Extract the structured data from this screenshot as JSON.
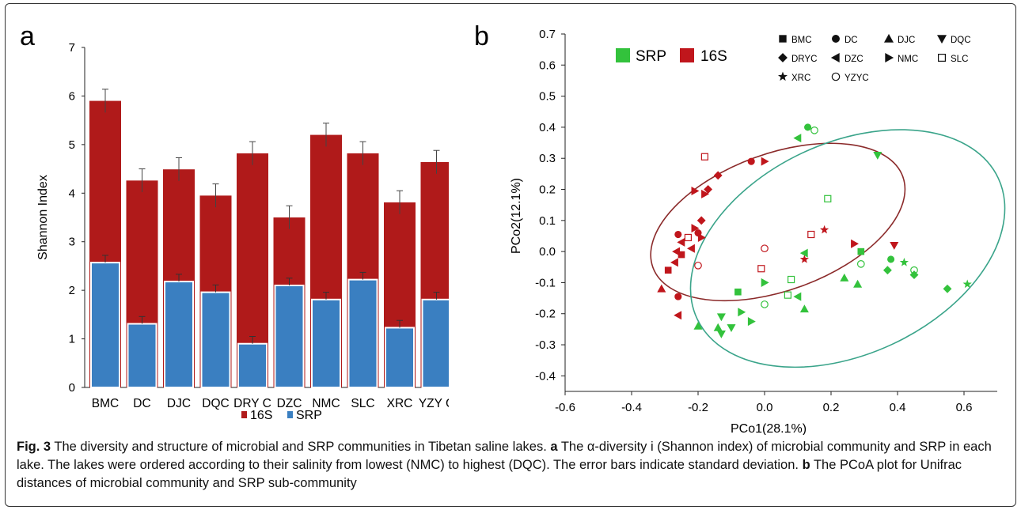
{
  "caption": {
    "lead": "Fig. 3",
    "p1": " The diversity and structure of microbial and SRP communities in Tibetan saline lakes. ",
    "a_letter": "a",
    "p2": " The α-diversity i (Shannon index) of microbial community and SRP in each lake. The lakes were ordered according to their salinity from lowest (NMC) to highest (DQC). The error bars indicate standard deviation. ",
    "b_letter": "b",
    "p3": " The PCoA plot for Unifrac distances of microbial community and SRP sub-community"
  },
  "chart_data": [
    {
      "type": "bar",
      "panel_label": "a",
      "categories": [
        "BMC",
        "DC",
        "DJC",
        "DQC",
        "DRY C",
        "DZC",
        "NMC",
        "SLC",
        "XRC",
        "YZY C"
      ],
      "series": [
        {
          "name": "16S",
          "color": "#b01a1a",
          "values": [
            5.9,
            4.26,
            4.49,
            3.95,
            4.82,
            3.5,
            5.2,
            4.82,
            3.81,
            4.64
          ],
          "errors": [
            0.24,
            0.24,
            0.24,
            0.24,
            0.24,
            0.24,
            0.24,
            0.24,
            0.24,
            0.24
          ]
        },
        {
          "name": "SRP",
          "color": "#3a7fc1",
          "values": [
            2.57,
            1.31,
            2.18,
            1.96,
            0.9,
            2.1,
            1.81,
            2.22,
            1.23,
            1.81
          ],
          "errors": [
            0.15,
            0.15,
            0.15,
            0.15,
            0.15,
            0.15,
            0.15,
            0.15,
            0.15,
            0.15
          ]
        }
      ],
      "ylabel": "Shannon Index",
      "xlabel": "",
      "ylim": [
        0,
        7
      ],
      "yticks": [
        "0",
        "1",
        "2",
        "3",
        "4",
        "5",
        "6",
        "7"
      ],
      "legend": {
        "placement": "bottom",
        "entries": [
          "16S",
          "SRP"
        ]
      }
    },
    {
      "type": "scatter",
      "panel_label": "b",
      "xlabel": "PCo1(28.1%)",
      "ylabel": "PCo2(12.1%)",
      "xlim": [
        -0.6,
        0.7
      ],
      "ylim": [
        -0.45,
        0.7
      ],
      "xticks": [
        "-0.6",
        "-0.4",
        "-0.2",
        "0.0",
        "0.2",
        "0.4",
        "0.6"
      ],
      "yticks": [
        "0.7",
        "0.6",
        "0.5",
        "0.4",
        "0.3",
        "0.2",
        "0.1",
        "0.0",
        "-0.1",
        "-0.2",
        "-0.3",
        "-0.4"
      ],
      "groups": [
        {
          "name": "SRP",
          "color": "#33c23c"
        },
        {
          "name": "16S",
          "color": "#c0161c"
        }
      ],
      "shape_legend": [
        {
          "label": "BMC",
          "shape": "square"
        },
        {
          "label": "DC",
          "shape": "circle"
        },
        {
          "label": "DJC",
          "shape": "triangle-up"
        },
        {
          "label": "DQC",
          "shape": "triangle-down"
        },
        {
          "label": "DRYC",
          "shape": "diamond"
        },
        {
          "label": "DZC",
          "shape": "triangle-left"
        },
        {
          "label": "NMC",
          "shape": "triangle-right"
        },
        {
          "label": "SLC",
          "shape": "square-open"
        },
        {
          "label": "XRC",
          "shape": "star"
        },
        {
          "label": "YZYC",
          "shape": "circle-open"
        }
      ],
      "points": [
        {
          "x": -0.18,
          "y": 0.305,
          "group": "16S",
          "shape": "square-open"
        },
        {
          "x": -0.23,
          "y": 0.045,
          "group": "16S",
          "shape": "square-open"
        },
        {
          "x": -0.01,
          "y": -0.055,
          "group": "16S",
          "shape": "square-open"
        },
        {
          "x": 0.14,
          "y": 0.055,
          "group": "16S",
          "shape": "square-open"
        },
        {
          "x": -0.14,
          "y": 0.245,
          "group": "16S",
          "shape": "diamond"
        },
        {
          "x": -0.17,
          "y": 0.2,
          "group": "16S",
          "shape": "diamond"
        },
        {
          "x": -0.19,
          "y": 0.1,
          "group": "16S",
          "shape": "diamond"
        },
        {
          "x": -0.04,
          "y": 0.29,
          "group": "16S",
          "shape": "circle"
        },
        {
          "x": -0.26,
          "y": 0.055,
          "group": "16S",
          "shape": "circle"
        },
        {
          "x": -0.26,
          "y": -0.145,
          "group": "16S",
          "shape": "circle"
        },
        {
          "x": -0.2,
          "y": 0.06,
          "group": "16S",
          "shape": "circle"
        },
        {
          "x": 0.0,
          "y": 0.29,
          "group": "16S",
          "shape": "triangle-right"
        },
        {
          "x": -0.21,
          "y": 0.195,
          "group": "16S",
          "shape": "triangle-right"
        },
        {
          "x": -0.18,
          "y": 0.185,
          "group": "16S",
          "shape": "triangle-right"
        },
        {
          "x": -0.21,
          "y": 0.075,
          "group": "16S",
          "shape": "triangle-right"
        },
        {
          "x": -0.19,
          "y": 0.045,
          "group": "16S",
          "shape": "triangle-right"
        },
        {
          "x": 0.27,
          "y": 0.025,
          "group": "16S",
          "shape": "triangle-right"
        },
        {
          "x": -0.25,
          "y": 0.03,
          "group": "16S",
          "shape": "triangle-left"
        },
        {
          "x": -0.265,
          "y": 0.0,
          "group": "16S",
          "shape": "triangle-left"
        },
        {
          "x": -0.27,
          "y": -0.035,
          "group": "16S",
          "shape": "triangle-left"
        },
        {
          "x": -0.26,
          "y": -0.205,
          "group": "16S",
          "shape": "triangle-left"
        },
        {
          "x": -0.22,
          "y": 0.01,
          "group": "16S",
          "shape": "triangle-left"
        },
        {
          "x": -0.29,
          "y": -0.06,
          "group": "16S",
          "shape": "square"
        },
        {
          "x": -0.25,
          "y": -0.01,
          "group": "16S",
          "shape": "square"
        },
        {
          "x": -0.31,
          "y": -0.12,
          "group": "16S",
          "shape": "triangle-up"
        },
        {
          "x": 0.39,
          "y": 0.02,
          "group": "16S",
          "shape": "triangle-down"
        },
        {
          "x": 0.18,
          "y": 0.07,
          "group": "16S",
          "shape": "star"
        },
        {
          "x": 0.12,
          "y": -0.025,
          "group": "16S",
          "shape": "star"
        },
        {
          "x": -0.2,
          "y": -0.045,
          "group": "16S",
          "shape": "circle-open"
        },
        {
          "x": 0.0,
          "y": 0.01,
          "group": "16S",
          "shape": "circle-open"
        },
        {
          "x": 0.13,
          "y": 0.4,
          "group": "SRP",
          "shape": "circle"
        },
        {
          "x": 0.38,
          "y": -0.025,
          "group": "SRP",
          "shape": "circle"
        },
        {
          "x": 0.15,
          "y": 0.39,
          "group": "SRP",
          "shape": "circle-open"
        },
        {
          "x": 0.0,
          "y": -0.17,
          "group": "SRP",
          "shape": "circle-open"
        },
        {
          "x": 0.29,
          "y": -0.04,
          "group": "SRP",
          "shape": "circle-open"
        },
        {
          "x": 0.45,
          "y": -0.06,
          "group": "SRP",
          "shape": "circle-open"
        },
        {
          "x": 0.1,
          "y": 0.365,
          "group": "SRP",
          "shape": "triangle-left"
        },
        {
          "x": 0.12,
          "y": -0.005,
          "group": "SRP",
          "shape": "triangle-left"
        },
        {
          "x": 0.1,
          "y": -0.145,
          "group": "SRP",
          "shape": "triangle-left"
        },
        {
          "x": 0.34,
          "y": 0.31,
          "group": "SRP",
          "shape": "triangle-down"
        },
        {
          "x": 0.19,
          "y": 0.17,
          "group": "SRP",
          "shape": "square-open"
        },
        {
          "x": 0.08,
          "y": -0.09,
          "group": "SRP",
          "shape": "square-open"
        },
        {
          "x": 0.07,
          "y": -0.14,
          "group": "SRP",
          "shape": "square-open"
        },
        {
          "x": 0.29,
          "y": 0.0,
          "group": "SRP",
          "shape": "square"
        },
        {
          "x": -0.08,
          "y": -0.13,
          "group": "SRP",
          "shape": "square"
        },
        {
          "x": -0.2,
          "y": -0.24,
          "group": "SRP",
          "shape": "triangle-up"
        },
        {
          "x": 0.24,
          "y": -0.085,
          "group": "SRP",
          "shape": "triangle-up"
        },
        {
          "x": 0.28,
          "y": -0.105,
          "group": "SRP",
          "shape": "triangle-up"
        },
        {
          "x": 0.12,
          "y": -0.185,
          "group": "SRP",
          "shape": "triangle-up"
        },
        {
          "x": -0.14,
          "y": -0.245,
          "group": "SRP",
          "shape": "triangle-up"
        },
        {
          "x": -0.13,
          "y": -0.21,
          "group": "SRP",
          "shape": "triangle-down"
        },
        {
          "x": -0.13,
          "y": -0.265,
          "group": "SRP",
          "shape": "triangle-down"
        },
        {
          "x": -0.1,
          "y": -0.245,
          "group": "SRP",
          "shape": "triangle-down"
        },
        {
          "x": -0.04,
          "y": -0.225,
          "group": "SRP",
          "shape": "triangle-right"
        },
        {
          "x": -0.07,
          "y": -0.195,
          "group": "SRP",
          "shape": "triangle-right"
        },
        {
          "x": 0.0,
          "y": -0.1,
          "group": "SRP",
          "shape": "triangle-right"
        },
        {
          "x": 0.45,
          "y": -0.075,
          "group": "SRP",
          "shape": "diamond"
        },
        {
          "x": 0.37,
          "y": -0.06,
          "group": "SRP",
          "shape": "diamond"
        },
        {
          "x": 0.55,
          "y": -0.12,
          "group": "SRP",
          "shape": "diamond"
        },
        {
          "x": 0.42,
          "y": -0.035,
          "group": "SRP",
          "shape": "star"
        },
        {
          "x": 0.61,
          "y": -0.105,
          "group": "SRP",
          "shape": "star"
        }
      ],
      "ellipses": [
        {
          "group": "16S",
          "cx": 0.04,
          "cy": 0.095,
          "rx": 0.4,
          "ry": 0.22,
          "angle_deg": 20,
          "color": "#8b2a2a"
        },
        {
          "group": "SRP",
          "cx": 0.25,
          "cy": 0.01,
          "rx": 0.5,
          "ry": 0.34,
          "angle_deg": 25,
          "color": "#3aa48a"
        }
      ]
    }
  ]
}
